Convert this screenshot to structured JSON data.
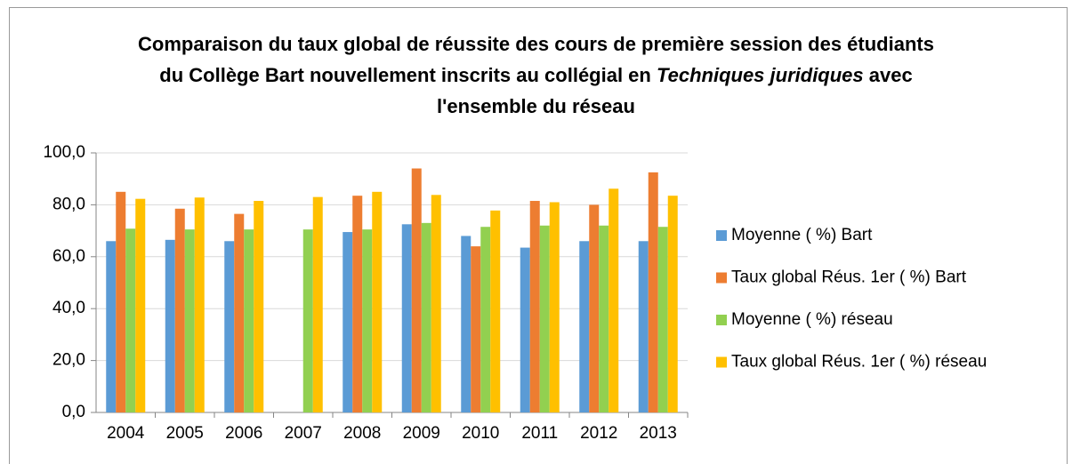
{
  "chart_data": {
    "type": "bar",
    "title_parts": [
      "Comparaison du taux global de réussite des cours de première session des étudiants du Collège Bart nouvellement inscrits au collégial en ",
      "Techniques juridiques",
      " avec l'ensemble du réseau"
    ],
    "categories": [
      "2004",
      "2005",
      "2006",
      "2007",
      "2008",
      "2009",
      "2010",
      "2011",
      "2012",
      "2013"
    ],
    "series": [
      {
        "name": "Moyenne ( %) Bart",
        "color": "#5b9bd5",
        "values": [
          66.0,
          66.5,
          66.0,
          null,
          69.5,
          72.5,
          68.0,
          63.5,
          66.0,
          66.0
        ]
      },
      {
        "name": "Taux global Réus. 1er ( %) Bart",
        "color": "#ed7d31",
        "values": [
          85.0,
          78.5,
          76.5,
          null,
          83.5,
          94.0,
          64.0,
          81.5,
          80.0,
          92.5
        ]
      },
      {
        "name": "Moyenne ( %) réseau",
        "color": "#92d050",
        "values": [
          70.8,
          70.5,
          70.5,
          70.5,
          70.5,
          73.0,
          71.5,
          72.0,
          72.0,
          71.5
        ]
      },
      {
        "name": "Taux global Réus. 1er ( %) réseau",
        "color": "#ffc000",
        "values": [
          82.3,
          82.8,
          81.5,
          83.0,
          85.0,
          83.8,
          77.8,
          81.0,
          86.2,
          83.5
        ]
      }
    ],
    "ylim": [
      0,
      100
    ],
    "yticks": [
      {
        "value": 0,
        "label": "0,0"
      },
      {
        "value": 20,
        "label": "20,0"
      },
      {
        "value": 40,
        "label": "40,0"
      },
      {
        "value": 60,
        "label": "60,0"
      },
      {
        "value": 80,
        "label": "80,0"
      },
      {
        "value": 100,
        "label": "100,0"
      }
    ],
    "grid": true,
    "legend": "right"
  }
}
